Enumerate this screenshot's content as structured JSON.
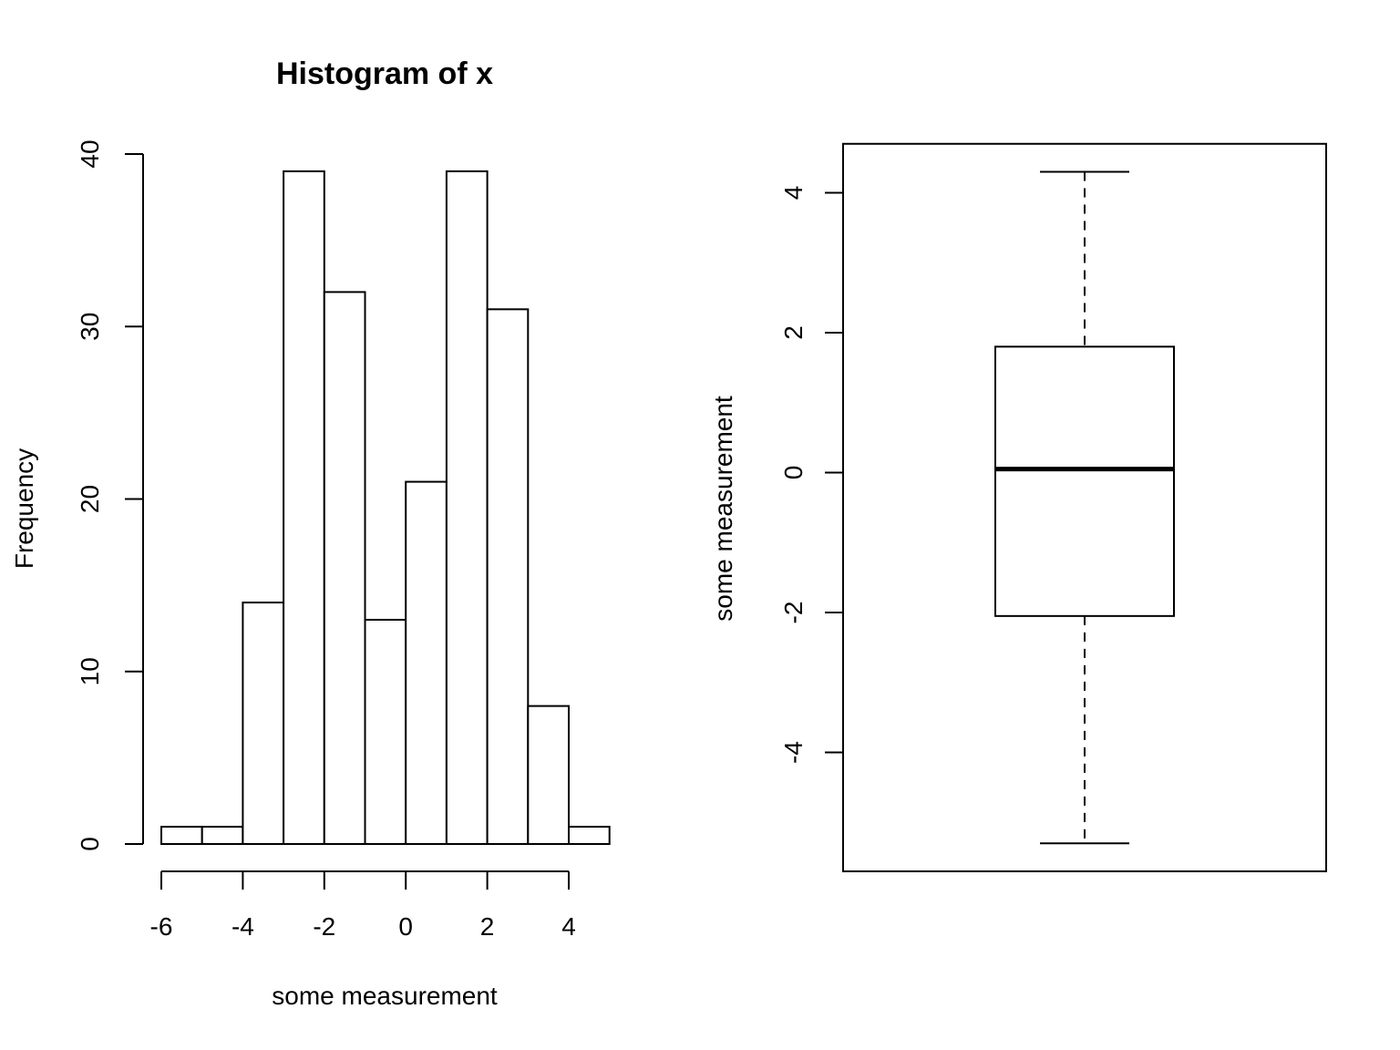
{
  "chart_data": [
    {
      "type": "bar",
      "title": "Histogram of x",
      "xlabel": "some measurement",
      "ylabel": "Frequency",
      "bin_edges": [
        -6,
        -5,
        -4,
        -3,
        -2,
        -1,
        0,
        1,
        2,
        3,
        4,
        5
      ],
      "values": [
        1,
        1,
        14,
        39,
        32,
        13,
        21,
        39,
        31,
        8,
        1
      ],
      "xticks": [
        -6,
        -4,
        -2,
        0,
        2,
        4
      ],
      "yticks": [
        0,
        10,
        20,
        30,
        40
      ],
      "xlim": [
        -6,
        5
      ],
      "ylim": [
        0,
        40
      ],
      "grid": false,
      "legend": "none"
    },
    {
      "type": "boxplot",
      "title": "",
      "xlabel": "",
      "ylabel": "some measurement",
      "stats": {
        "lower_whisker": -5.3,
        "q1": -2.05,
        "median": 0.05,
        "q3": 1.8,
        "upper_whisker": 4.3
      },
      "yticks": [
        -4,
        -2,
        0,
        2,
        4
      ],
      "ylim": [
        -5.7,
        4.7
      ],
      "grid": false,
      "legend": "none"
    }
  ]
}
